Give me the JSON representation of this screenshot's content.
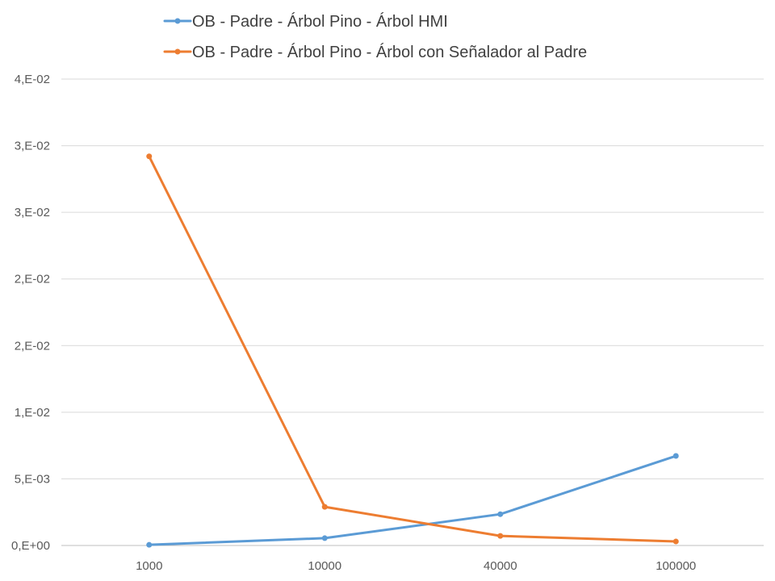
{
  "chart_data": {
    "type": "line",
    "title": "",
    "xlabel": "",
    "ylabel": "",
    "categories": [
      "1000",
      "10000",
      "40000",
      "100000"
    ],
    "ylim": [
      0,
      0.035
    ],
    "y_ticks": [
      {
        "value": 0,
        "label": "0,E+00"
      },
      {
        "value": 0.005,
        "label": "5,E-03"
      },
      {
        "value": 0.01,
        "label": "1,E-02"
      },
      {
        "value": 0.015,
        "label": "2,E-02"
      },
      {
        "value": 0.02,
        "label": "2,E-02"
      },
      {
        "value": 0.025,
        "label": "3,E-02"
      },
      {
        "value": 0.03,
        "label": "3,E-02"
      },
      {
        "value": 0.035,
        "label": "4,E-02"
      }
    ],
    "grid": "horizontal",
    "legend_position": "top",
    "series": [
      {
        "name": "OB - Padre - Árbol Pino - Árbol HMI",
        "color": "#5b9bd5",
        "values": [
          5e-05,
          0.00055,
          0.00235,
          0.00672
        ]
      },
      {
        "name": "OB - Padre - Árbol Pino - Árbol con Señalador al Padre",
        "color": "#ed7d31",
        "values": [
          0.0292,
          0.0029,
          0.00072,
          0.0003
        ]
      }
    ]
  }
}
